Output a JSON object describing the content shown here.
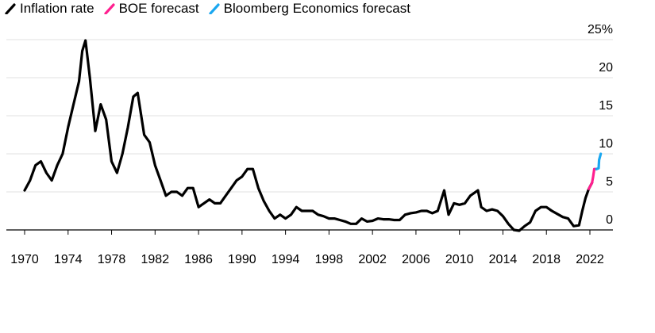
{
  "chart_data": {
    "type": "line",
    "title": "",
    "xlabel": "",
    "ylabel": "",
    "ylim": [
      0,
      25
    ],
    "xlim": [
      1970,
      2024
    ],
    "y_ticks": [
      0,
      5,
      10,
      15,
      20,
      25
    ],
    "y_tick_labels": [
      "0",
      "5",
      "10",
      "15",
      "20",
      "25%"
    ],
    "x_ticks": [
      1970,
      1974,
      1978,
      1982,
      1986,
      1990,
      1994,
      1998,
      2002,
      2006,
      2010,
      2014,
      2018,
      2022
    ],
    "x_tick_labels": [
      "1970",
      "1974",
      "1978",
      "1982",
      "1986",
      "1990",
      "1994",
      "1998",
      "2002",
      "2006",
      "2010",
      "2014",
      "2018",
      "2022"
    ],
    "grid": true,
    "legend_position": "top-left",
    "series": [
      {
        "name": "Inflation rate",
        "color": "#000000",
        "x": [
          1970,
          1970.5,
          1971,
          1971.5,
          1972,
          1972.5,
          1973,
          1973.5,
          1974,
          1974.5,
          1975,
          1975.3,
          1975.6,
          1976,
          1976.5,
          1977,
          1977.5,
          1978,
          1978.5,
          1979,
          1979.5,
          1980,
          1980.4,
          1981,
          1981.5,
          1982,
          1982.5,
          1983,
          1983.5,
          1984,
          1984.5,
          1985,
          1985.5,
          1986,
          1986.5,
          1987,
          1987.5,
          1988,
          1988.5,
          1989,
          1989.5,
          1990,
          1990.5,
          1991,
          1991.5,
          1992,
          1992.5,
          1993,
          1993.5,
          1994,
          1994.5,
          1995,
          1995.5,
          1996,
          1996.5,
          1997,
          1997.5,
          1998,
          1998.5,
          1999,
          1999.5,
          2000,
          2000.5,
          2001,
          2001.5,
          2002,
          2002.5,
          2003,
          2003.5,
          2004,
          2004.5,
          2005,
          2005.5,
          2006,
          2006.5,
          2007,
          2007.5,
          2008,
          2008.6,
          2009,
          2009.5,
          2010,
          2010.5,
          2011,
          2011.7,
          2012,
          2012.5,
          2013,
          2013.5,
          2014,
          2014.5,
          2015,
          2015.5,
          2016,
          2016.5,
          2017,
          2017.5,
          2018,
          2018.5,
          2019,
          2019.5,
          2020,
          2020.5,
          2021,
          2021.3,
          2021.6,
          2021.9,
          2022.2
        ],
        "values": [
          5.2,
          6.5,
          8.5,
          9.0,
          7.5,
          6.5,
          8.5,
          10.0,
          13.5,
          16.5,
          19.5,
          23.5,
          24.9,
          20.0,
          13.0,
          16.5,
          14.5,
          9.0,
          7.5,
          10.0,
          13.5,
          17.5,
          18.0,
          12.5,
          11.5,
          8.5,
          6.5,
          4.5,
          5.0,
          5.0,
          4.5,
          5.5,
          5.5,
          3.0,
          3.5,
          4.0,
          3.5,
          3.5,
          4.5,
          5.5,
          6.5,
          7.0,
          8.0,
          8.0,
          5.5,
          3.8,
          2.5,
          1.5,
          2.0,
          1.5,
          2.0,
          3.0,
          2.5,
          2.5,
          2.5,
          2.0,
          1.8,
          1.5,
          1.5,
          1.3,
          1.1,
          0.8,
          0.8,
          1.5,
          1.1,
          1.2,
          1.5,
          1.4,
          1.4,
          1.3,
          1.3,
          2.0,
          2.2,
          2.3,
          2.5,
          2.5,
          2.2,
          2.5,
          5.2,
          2.0,
          3.5,
          3.3,
          3.5,
          4.5,
          5.2,
          3.0,
          2.5,
          2.7,
          2.5,
          1.8,
          0.8,
          0.0,
          -0.1,
          0.5,
          1.0,
          2.5,
          3.0,
          3.0,
          2.5,
          2.1,
          1.7,
          1.5,
          0.5,
          0.6,
          2.5,
          4.2,
          5.4,
          6.2
        ],
        "line_label": ""
      },
      {
        "name": "BOE forecast",
        "color": "#ff1f8f",
        "x": [
          2021.9,
          2022.2,
          2022.3,
          2022.4,
          2022.6
        ],
        "values": [
          5.4,
          6.2,
          7.0,
          8.0,
          8.0
        ]
      },
      {
        "name": "Bloomberg Economics forecast",
        "color": "#1aa7f0",
        "x": [
          2022.6,
          2022.8,
          2022.85,
          2023.0
        ],
        "values": [
          8.0,
          8.1,
          9.2,
          10.0
        ]
      }
    ]
  }
}
